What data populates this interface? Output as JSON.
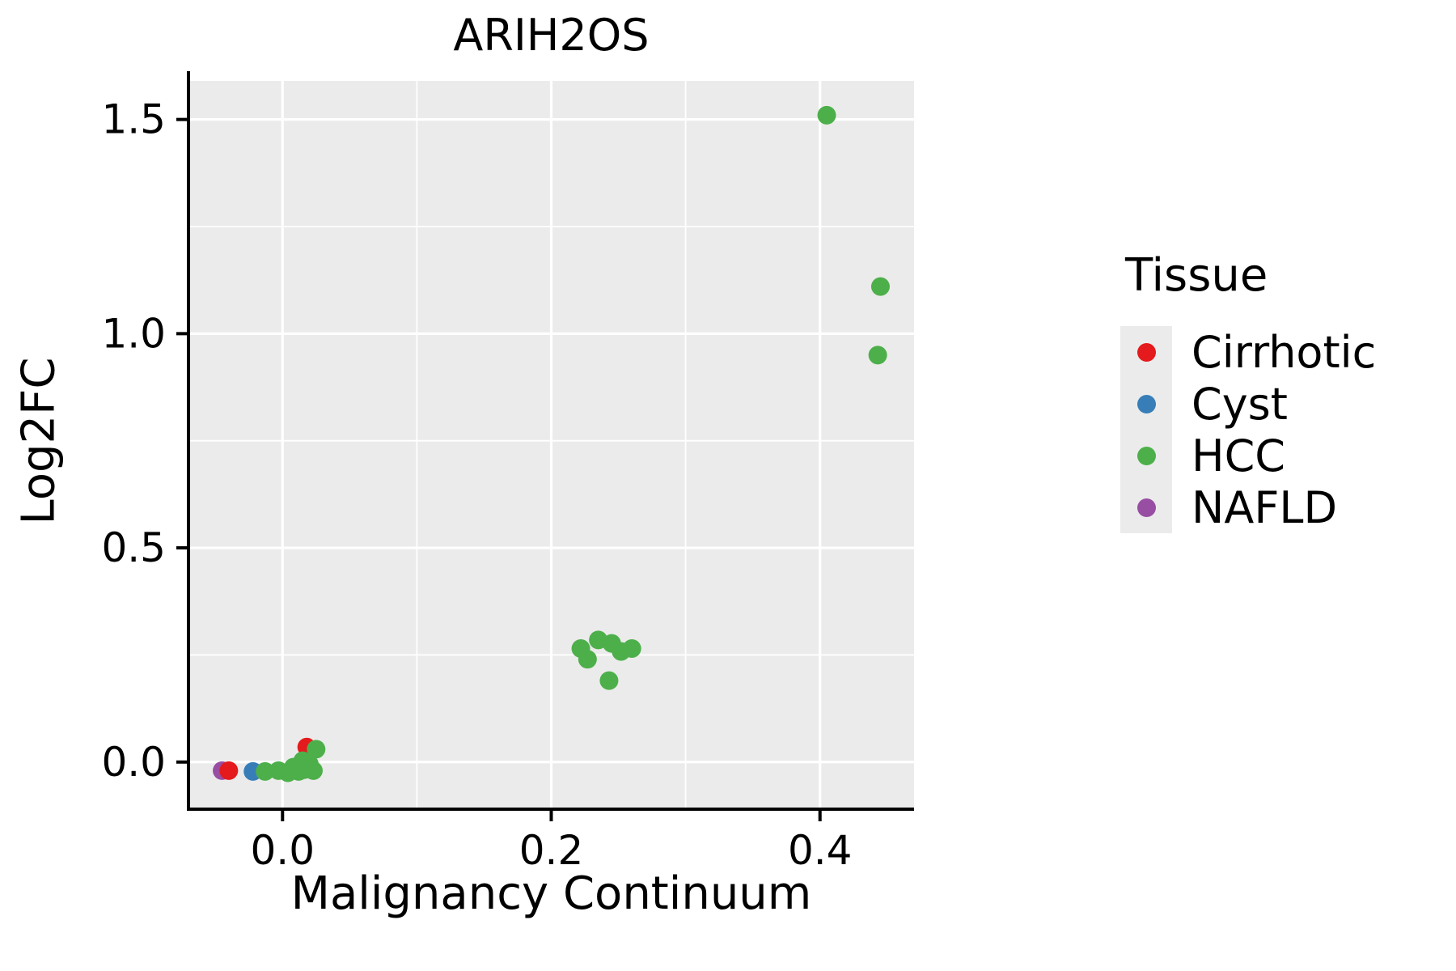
{
  "chart_data": {
    "type": "scatter",
    "title": "ARIH2OS",
    "xlabel": "Malignancy Continuum",
    "ylabel": "Log2FC",
    "xlim": [
      -0.07,
      0.47
    ],
    "ylim": [
      -0.11,
      1.59
    ],
    "x_ticks": [
      0.0,
      0.2,
      0.4
    ],
    "x_tick_labels": [
      "0.0",
      "0.2",
      "0.4"
    ],
    "x_minor": [
      0.1,
      0.3
    ],
    "y_ticks": [
      0.0,
      0.5,
      1.0,
      1.5
    ],
    "y_tick_labels": [
      "0.0",
      "0.5",
      "1.0",
      "1.5"
    ],
    "y_minor": [
      0.25,
      0.75,
      1.25
    ],
    "grid": true,
    "panel_bg": "#EBEBEB",
    "grid_color": "#FFFFFF",
    "legend": {
      "title": "Tissue",
      "position": "right",
      "entries": [
        {
          "label": "Cirrhotic",
          "color": "#E41A1C"
        },
        {
          "label": "Cyst",
          "color": "#377EB8"
        },
        {
          "label": "HCC",
          "color": "#4DAF4A"
        },
        {
          "label": "NAFLD",
          "color": "#984EA3"
        }
      ]
    },
    "series": [
      {
        "name": "NAFLD",
        "color": "#984EA3",
        "points": [
          [
            -0.045,
            -0.02
          ]
        ]
      },
      {
        "name": "Cirrhotic",
        "color": "#E41A1C",
        "points": [
          [
            -0.04,
            -0.02
          ],
          [
            0.018,
            0.035
          ]
        ]
      },
      {
        "name": "Cyst",
        "color": "#377EB8",
        "points": [
          [
            -0.022,
            -0.022
          ]
        ]
      },
      {
        "name": "HCC",
        "color": "#4DAF4A",
        "points": [
          [
            -0.013,
            -0.022
          ],
          [
            -0.003,
            -0.02
          ],
          [
            0.004,
            -0.025
          ],
          [
            0.008,
            -0.012
          ],
          [
            0.012,
            -0.022
          ],
          [
            0.016,
            -0.018
          ],
          [
            0.02,
            -0.005
          ],
          [
            0.023,
            -0.02
          ],
          [
            0.025,
            0.03
          ],
          [
            0.015,
            0.003
          ],
          [
            0.222,
            0.265
          ],
          [
            0.227,
            0.24
          ],
          [
            0.235,
            0.285
          ],
          [
            0.245,
            0.277
          ],
          [
            0.252,
            0.258
          ],
          [
            0.26,
            0.265
          ],
          [
            0.243,
            0.19
          ],
          [
            0.405,
            1.51
          ],
          [
            0.445,
            1.11
          ],
          [
            0.443,
            0.95
          ]
        ]
      }
    ]
  }
}
